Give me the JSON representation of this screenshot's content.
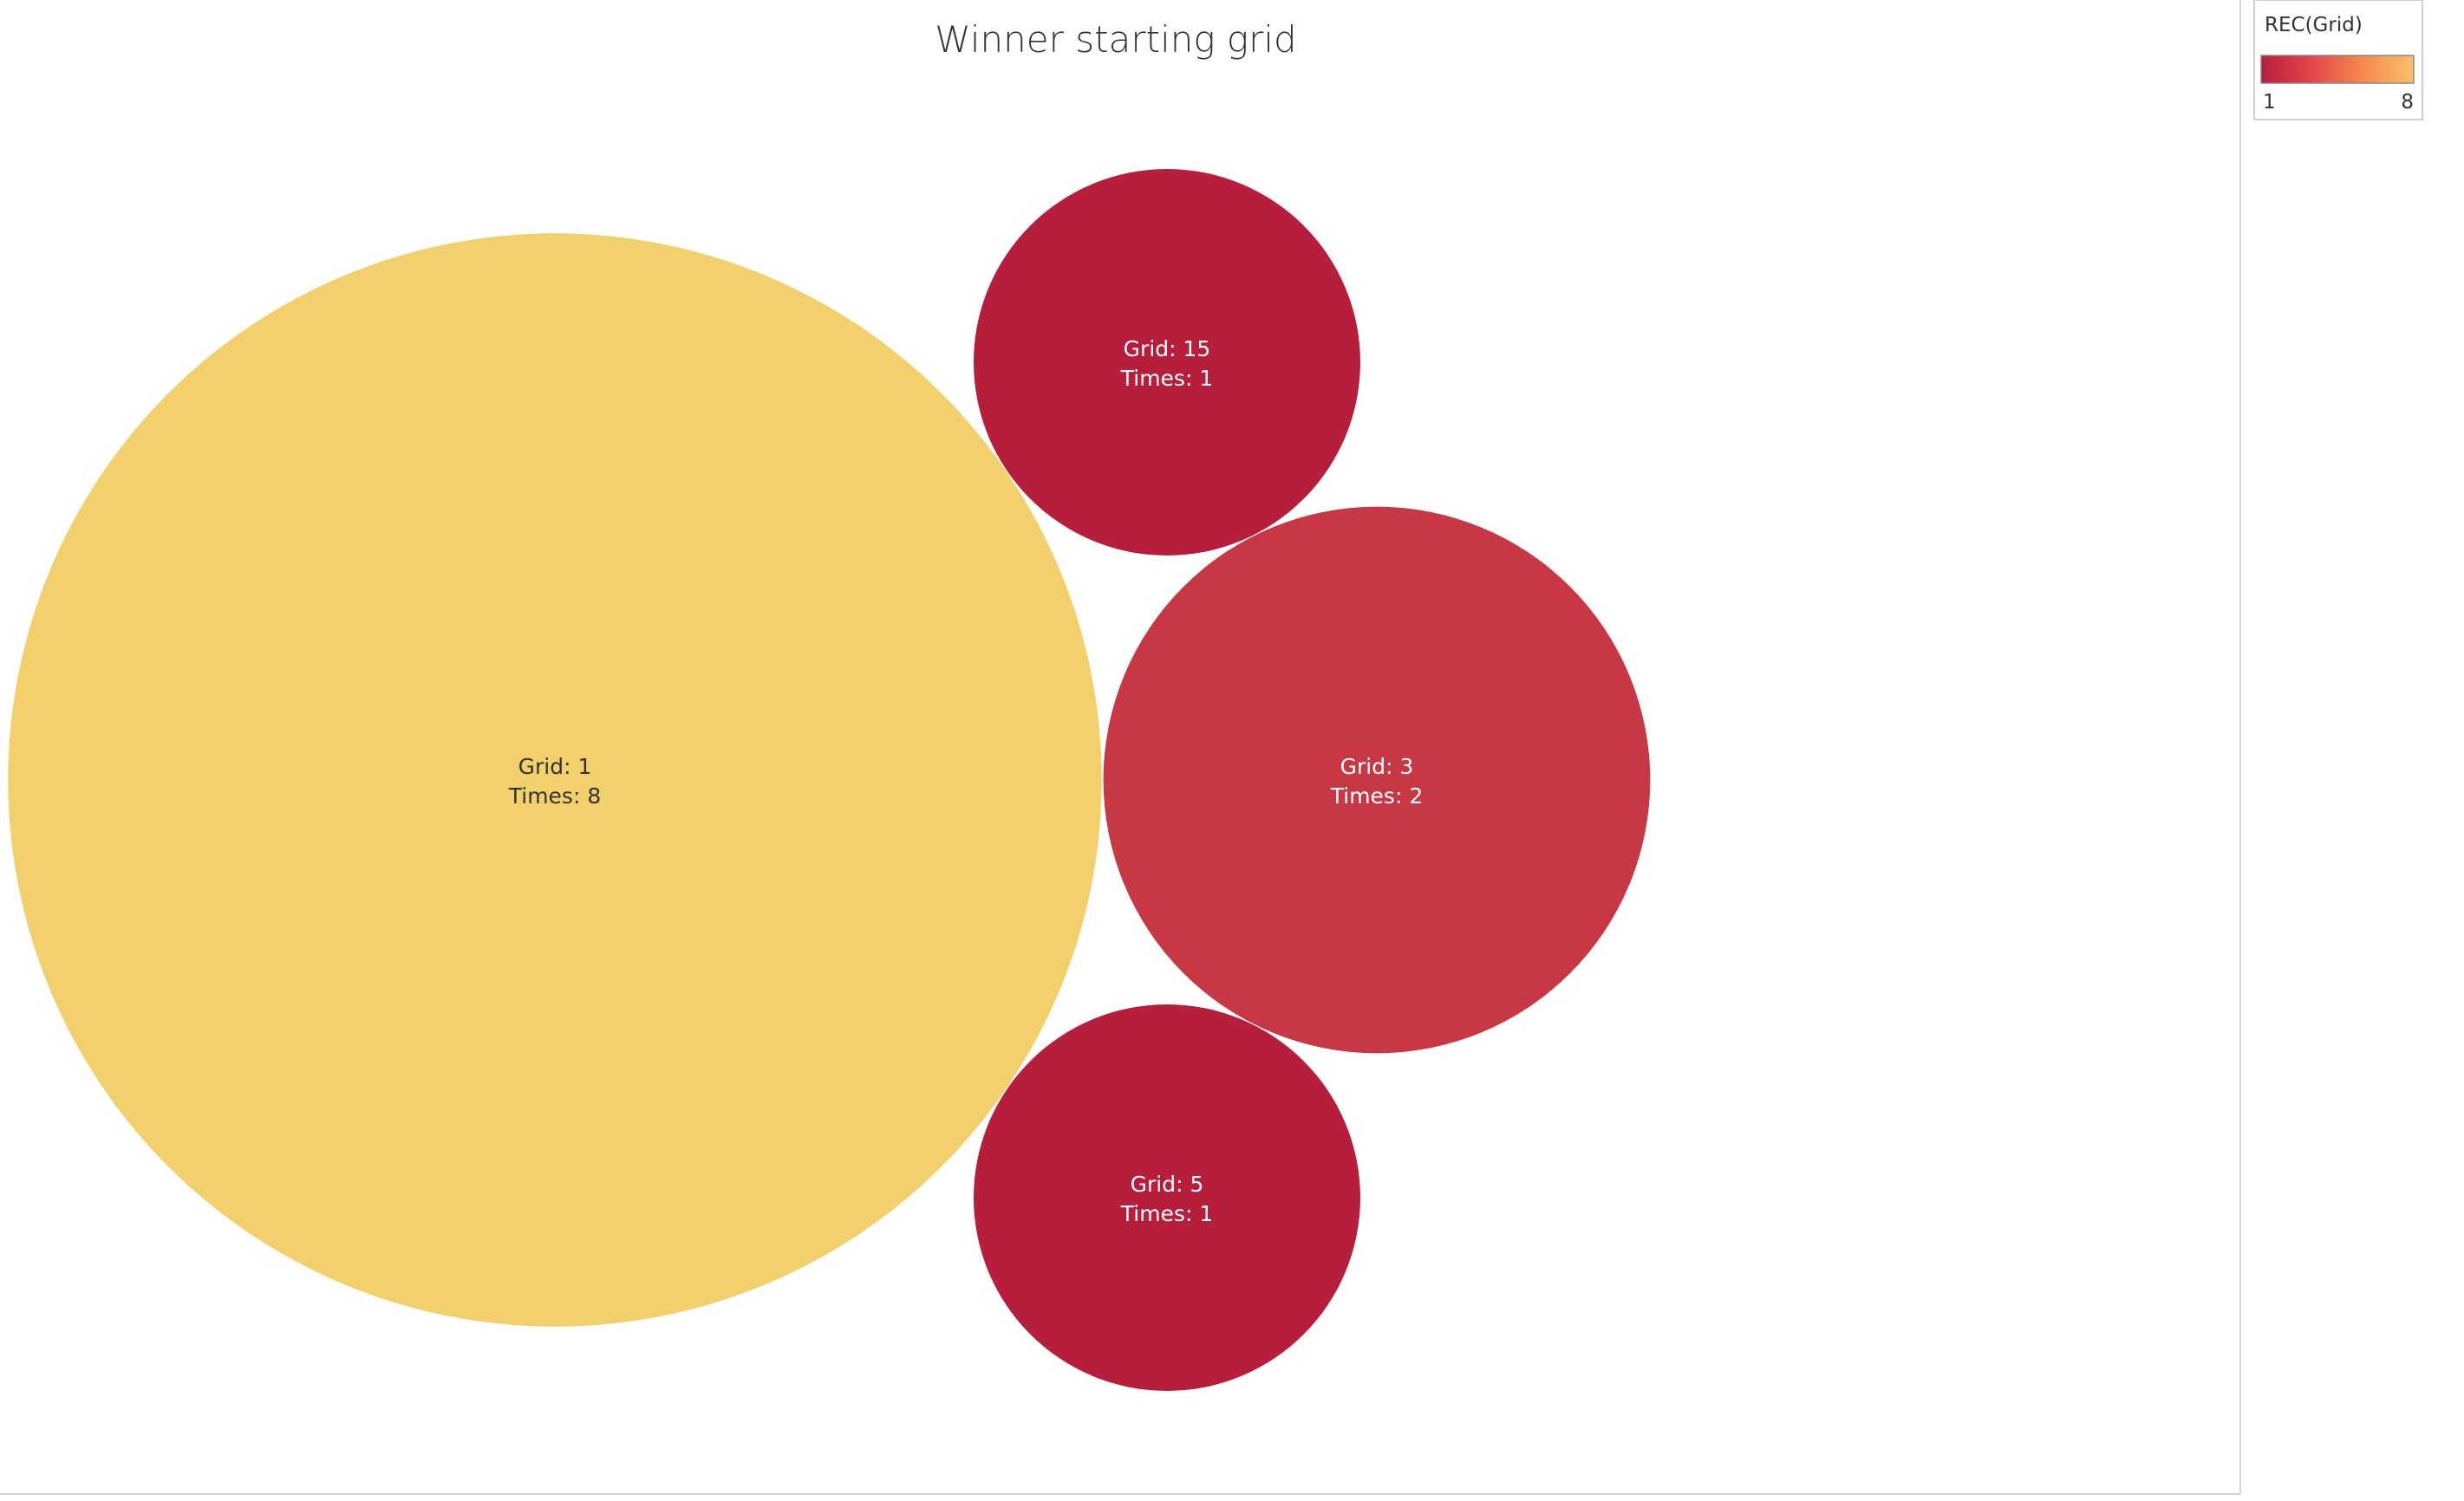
{
  "chart_data": {
    "type": "bubble",
    "title": "Winner starting grid",
    "bubbles": [
      {
        "grid": 1,
        "times": 8,
        "label_line1": "Grid: 1",
        "label_line2": "Times: 8",
        "color": "#F2D06B",
        "text_color": "#333333"
      },
      {
        "grid": 15,
        "times": 1,
        "label_line1": "Grid: 15",
        "label_line2": "Times: 1",
        "color": "#B71E3C",
        "text_color": "#ffffff"
      },
      {
        "grid": 3,
        "times": 2,
        "label_line1": "Grid: 3",
        "label_line2": "Times: 2",
        "color": "#C83844",
        "text_color": "#ffffff"
      },
      {
        "grid": 5,
        "times": 1,
        "label_line1": "Grid: 5",
        "label_line2": "Times: 1",
        "color": "#B71E3C",
        "text_color": "#ffffff"
      }
    ],
    "size_field": "Times",
    "color_legend": {
      "title": "REC(Grid)",
      "min_label": "1",
      "max_label": "8",
      "gradient": [
        "#B71E3C",
        "#E2464A",
        "#F7894F",
        "#F9C168"
      ]
    }
  }
}
